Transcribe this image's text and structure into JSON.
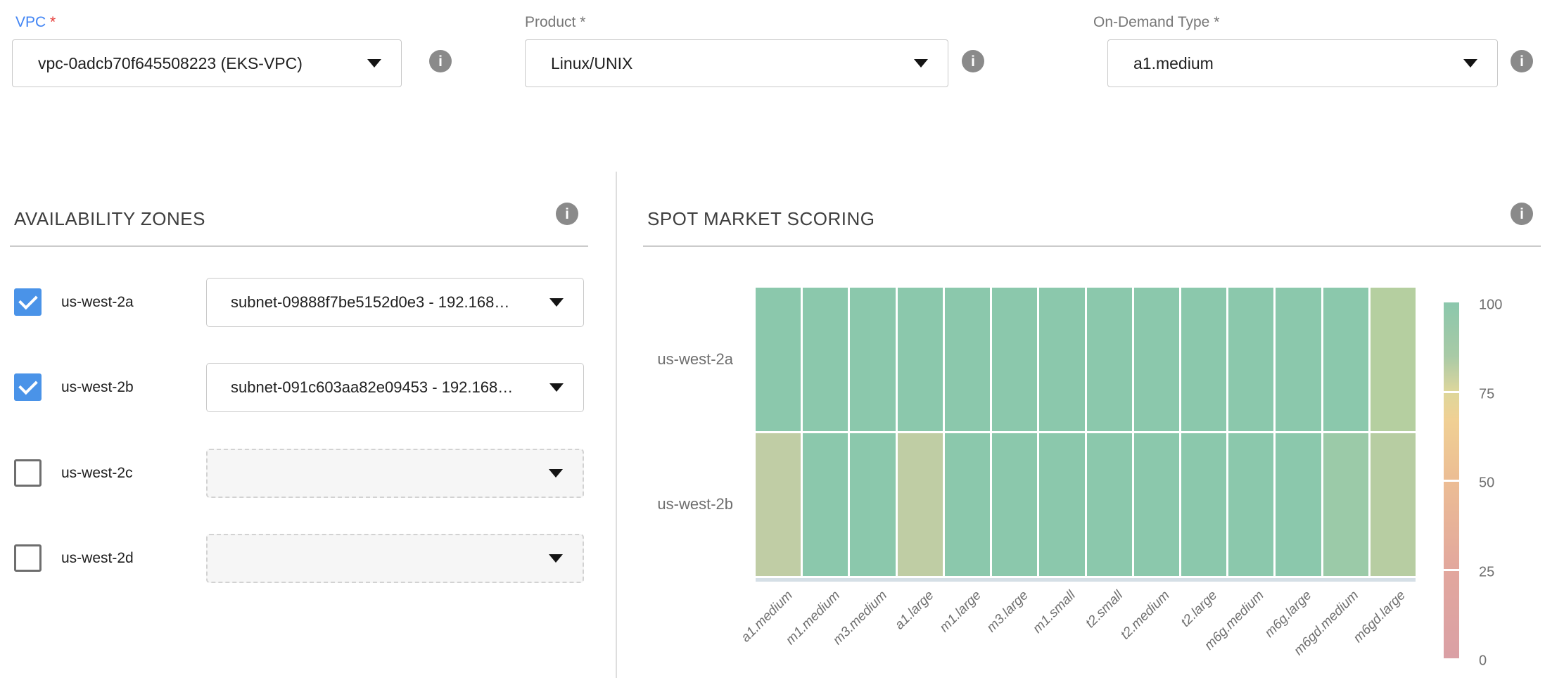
{
  "form_fields": [
    {
      "label": "VPC",
      "required_marker": "*",
      "value": "vpc-0adcb70f645508223 (EKS-VPC)",
      "label_color": "#4285f4",
      "marker_color": "#e53935"
    },
    {
      "label": "Product",
      "required_marker": "*",
      "value": "Linux/UNIX",
      "label_color": "#777777",
      "marker_color": "#777777"
    },
    {
      "label": "On-Demand Type",
      "required_marker": "*",
      "value": "a1.medium",
      "label_color": "#777777",
      "marker_color": "#777777"
    }
  ],
  "availability_zones": {
    "title": "AVAILABILITY ZONES",
    "zones": [
      {
        "label": "us-west-2a",
        "checked": true,
        "subnet": "subnet-09888f7be5152d0e3 - 192.168…"
      },
      {
        "label": "us-west-2b",
        "checked": true,
        "subnet": "subnet-091c603aa82e09453 - 192.168…"
      },
      {
        "label": "us-west-2c",
        "checked": false,
        "subnet": ""
      },
      {
        "label": "us-west-2d",
        "checked": false,
        "subnet": ""
      }
    ]
  },
  "spot_market_scoring": {
    "title": "SPOT MARKET SCORING"
  },
  "chart_data": {
    "type": "heatmap",
    "title": "SPOT MARKET SCORING",
    "x_categories": [
      "a1.medium",
      "m1.medium",
      "m3.medium",
      "a1.large",
      "m1.large",
      "m3.large",
      "m1.small",
      "t2.small",
      "t2.medium",
      "t2.large",
      "m6g.medium",
      "m6g.large",
      "m6gd.medium",
      "m6gd.large"
    ],
    "y_categories": [
      "us-west-2a",
      "us-west-2b"
    ],
    "values": [
      [
        90,
        90,
        90,
        90,
        90,
        90,
        90,
        90,
        90,
        90,
        90,
        90,
        90,
        76
      ],
      [
        76,
        90,
        90,
        76,
        90,
        90,
        90,
        90,
        90,
        90,
        90,
        90,
        85,
        76
      ]
    ],
    "cell_colors": [
      [
        "#8bc8ac",
        "#8bc8ac",
        "#8bc8ac",
        "#8bc8ac",
        "#8bc8ac",
        "#8bc8ac",
        "#8bc8ac",
        "#8bc8ac",
        "#8bc8ac",
        "#8bc8ac",
        "#8bc8ac",
        "#8bc8ac",
        "#8bc8ac",
        "#b5cfa0"
      ],
      [
        "#c0cda5",
        "#8bc8ac",
        "#8bc8ac",
        "#bfcda4",
        "#8bc8ac",
        "#8bc8ac",
        "#8bc8ac",
        "#8bc8ac",
        "#8bc8ac",
        "#8bc8ac",
        "#8bc8ac",
        "#8bc8ac",
        "#9bcaa8",
        "#b7cda2"
      ]
    ],
    "colorbar": {
      "range": [
        0,
        100
      ],
      "ticks": [
        100,
        75,
        50,
        25,
        0
      ],
      "gradient_top_to_bottom": [
        "#8bc7ac",
        "#ddd79b",
        "#f0d094",
        "#ecbd94",
        "#e2a79d",
        "#daa0a5"
      ]
    },
    "legend_position": "right",
    "grid": false
  }
}
